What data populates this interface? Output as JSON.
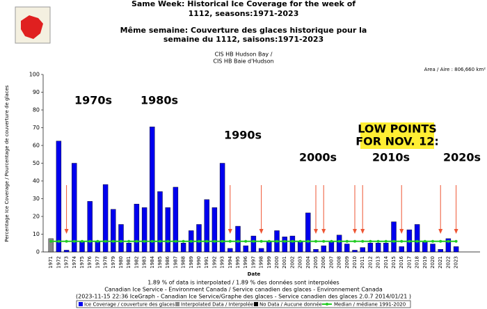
{
  "chart_data": {
    "type": "bar",
    "title_lines": [
      "Same Week: Historical Ice Coverage for the week of",
      "1112, seasons:1971-2023",
      "Même semaine: Couverture des glaces historique pour la",
      "semaine du 1112, saisons:1971-2023"
    ],
    "subtitle_lines": [
      "CIS HB Hudson Bay /",
      "CIS HB Baie d'Hudson"
    ],
    "area_label": "Area / Aire : 806,660 km²",
    "y_label": "Percentage Ice Coverage / Pourcentage de couverture de glaces",
    "x_label": "Date",
    "annotations": [
      "1970s",
      "1980s",
      "1990s",
      "2000s",
      "2010s",
      "2020s"
    ],
    "low_points_lines": [
      "LOW POINTS",
      "FOR NOV. 12:"
    ],
    "footer_lines": [
      "1.89 % of data is interpolated / 1.89 % des données sont interpolées",
      "Canadian Ice Service - Environment Canada / Service canadien des glaces - Environnement Canada",
      "(2023-11-15 22:36 IceGraph - Canadian Ice Service/Graphe des glaces - Service canadien des glaces 2.0.7 2014/01/21 )"
    ],
    "legend": [
      "Ice Coverage / couverture des glaces",
      "Interpolated Data / Interpolée",
      "No Data / Aucune donnée",
      "Median / médiane 1991-2020"
    ],
    "categories": [
      "1971",
      "1972",
      "1973",
      "1974",
      "1975",
      "1976",
      "1977",
      "1978",
      "1979",
      "1980",
      "1981",
      "1982",
      "1983",
      "1984",
      "1985",
      "1986",
      "1987",
      "1988",
      "1989",
      "1990",
      "1991",
      "1992",
      "1993",
      "1994",
      "1995",
      "1996",
      "1997",
      "1998",
      "1999",
      "2000",
      "2001",
      "2002",
      "2003",
      "2004",
      "2005",
      "2006",
      "2007",
      "2008",
      "2009",
      "2010",
      "2011",
      "2012",
      "2013",
      "2014",
      "2015",
      "2016",
      "2017",
      "2018",
      "2019",
      "2020",
      "2021",
      "2022",
      "2023"
    ],
    "values": [
      7.5,
      62.5,
      1,
      50,
      6,
      28.5,
      6,
      38,
      24,
      15.5,
      5,
      27,
      25,
      70.5,
      34,
      25,
      36.5,
      5,
      12,
      15.5,
      29.5,
      25,
      50,
      2,
      14.5,
      3.5,
      9,
      2,
      6,
      12,
      8.5,
      9,
      6,
      22,
      1.5,
      3.5,
      6,
      9.5,
      4.5,
      1,
      2.5,
      5,
      5,
      5,
      17,
      3,
      12.5,
      15.5,
      5.5,
      4.5,
      1.5,
      7.5,
      3
    ],
    "color": "#0000ee",
    "interpolated_color": "#888888",
    "interpolated_categories": [
      "1971"
    ],
    "median": 6,
    "median_color": "#22cc22",
    "ylim": [
      0,
      100
    ],
    "yticks": [
      0,
      10,
      20,
      30,
      40,
      50,
      60,
      70,
      80,
      90,
      100
    ]
  }
}
